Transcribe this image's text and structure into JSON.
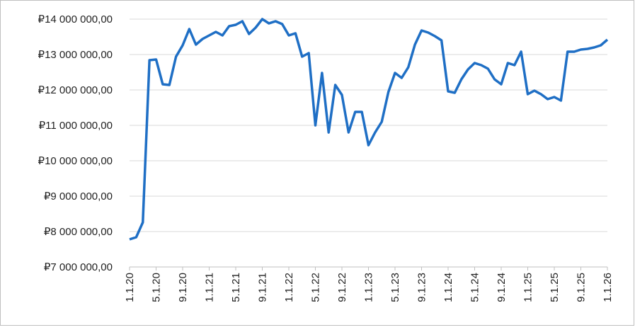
{
  "chart_data": {
    "type": "line",
    "categories": [
      "1.1.20",
      null,
      null,
      null,
      "5.1.20",
      null,
      null,
      null,
      "9.1.20",
      null,
      null,
      null,
      "1.1.21",
      null,
      null,
      null,
      "5.1.21",
      null,
      null,
      null,
      "9.1.21",
      null,
      null,
      null,
      "1.1.22",
      null,
      null,
      null,
      "5.1.22",
      null,
      null,
      null,
      "9.1.22",
      null,
      null,
      null,
      "1.1.23",
      null,
      null,
      null,
      "5.1.23",
      null,
      null,
      null,
      "9.1.23",
      null,
      null,
      null,
      "1.1.24",
      null,
      null,
      null,
      "5.1.24",
      null,
      null,
      null,
      "9.1.24",
      null,
      null,
      null,
      "1.1.25",
      null,
      null,
      null,
      "5.1.25",
      null,
      null,
      null,
      "9.1.25",
      null,
      null,
      null,
      "1.1.26"
    ],
    "values": [
      7780000,
      7840000,
      8260000,
      12840000,
      12860000,
      12160000,
      12140000,
      12940000,
      13260000,
      13720000,
      13280000,
      13440000,
      13540000,
      13640000,
      13540000,
      13800000,
      13840000,
      13940000,
      13580000,
      13760000,
      14000000,
      13880000,
      13940000,
      13860000,
      13540000,
      13600000,
      12940000,
      13040000,
      11000000,
      12480000,
      10800000,
      12140000,
      11860000,
      10800000,
      11380000,
      11380000,
      10440000,
      10800000,
      11100000,
      11940000,
      12480000,
      12340000,
      12640000,
      13280000,
      13680000,
      13620000,
      13520000,
      13400000,
      11960000,
      11920000,
      12300000,
      12580000,
      12760000,
      12700000,
      12600000,
      12300000,
      12160000,
      12760000,
      12700000,
      13080000,
      11880000,
      11980000,
      11880000,
      11740000,
      11800000,
      11700000,
      13080000,
      13080000,
      13140000,
      13160000,
      13200000,
      13260000,
      13420000
    ],
    "color": "#1f6fc5",
    "ylim": [
      7000000,
      14000000
    ],
    "yticks": [
      {
        "value": 7000000,
        "label": "₽7 000 000,00"
      },
      {
        "value": 8000000,
        "label": "₽8 000 000,00"
      },
      {
        "value": 9000000,
        "label": "₽9 000 000,00"
      },
      {
        "value": 10000000,
        "label": "₽10 000 000,00"
      },
      {
        "value": 11000000,
        "label": "₽11 000 000,00"
      },
      {
        "value": 12000000,
        "label": "₽12 000 000,00"
      },
      {
        "value": 13000000,
        "label": "₽13 000 000,00"
      },
      {
        "value": 14000000,
        "label": "₽14 000 000,00"
      }
    ],
    "grid": true
  }
}
